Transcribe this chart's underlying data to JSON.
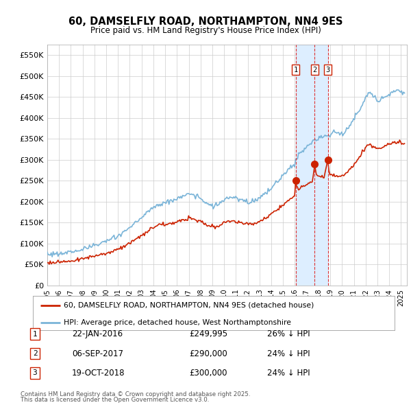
{
  "title_line1": "60, DAMSELFLY ROAD, NORTHAMPTON, NN4 9ES",
  "title_line2": "Price paid vs. HM Land Registry's House Price Index (HPI)",
  "ylim": [
    0,
    575000
  ],
  "ytick_values": [
    0,
    50000,
    100000,
    150000,
    200000,
    250000,
    300000,
    350000,
    400000,
    450000,
    500000,
    550000
  ],
  "ytick_labels": [
    "£0",
    "£50K",
    "£100K",
    "£150K",
    "£200K",
    "£250K",
    "£300K",
    "£350K",
    "£400K",
    "£450K",
    "£500K",
    "£550K"
  ],
  "hpi_color": "#7ab4d8",
  "price_color": "#cc2200",
  "vline_color": "#dd3333",
  "shade_color": "#ddeeff",
  "background_color": "#ffffff",
  "grid_color": "#cccccc",
  "legend_label_price": "60, DAMSELFLY ROAD, NORTHAMPTON, NN4 9ES (detached house)",
  "legend_label_hpi": "HPI: Average price, detached house, West Northamptonshire",
  "transactions": [
    {
      "num": 1,
      "date_x": 2016.07,
      "price": 249995,
      "label": "22-JAN-2016",
      "price_str": "£249,995",
      "hpi_pct": "26% ↓ HPI"
    },
    {
      "num": 2,
      "date_x": 2017.68,
      "price": 290000,
      "label": "06-SEP-2017",
      "price_str": "£290,000",
      "hpi_pct": "24% ↓ HPI"
    },
    {
      "num": 3,
      "date_x": 2018.79,
      "price": 300000,
      "label": "19-OCT-2018",
      "price_str": "£300,000",
      "hpi_pct": "24% ↓ HPI"
    }
  ],
  "footer_line1": "Contains HM Land Registry data © Crown copyright and database right 2025.",
  "footer_line2": "This data is licensed under the Open Government Licence v3.0.",
  "xlim": [
    1995.0,
    2025.5
  ],
  "xticks": [
    1995,
    1996,
    1997,
    1998,
    1999,
    2000,
    2001,
    2002,
    2003,
    2004,
    2005,
    2006,
    2007,
    2008,
    2009,
    2010,
    2011,
    2012,
    2013,
    2014,
    2015,
    2016,
    2017,
    2018,
    2019,
    2020,
    2021,
    2022,
    2023,
    2024,
    2025
  ]
}
